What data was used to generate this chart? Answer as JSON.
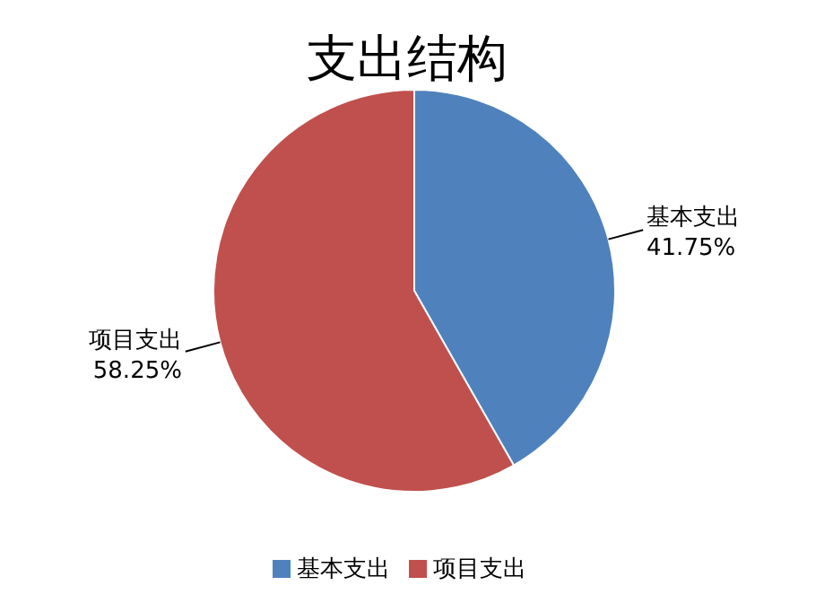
{
  "chart_data": {
    "type": "pie",
    "title": "支出结构",
    "categories": [
      "基本支出",
      "项目支出"
    ],
    "values": [
      41.75,
      58.25
    ],
    "value_labels": [
      "41.75%",
      "58.25%"
    ],
    "colors": [
      "#4f81bd",
      "#c0504d"
    ],
    "legend": "bottom"
  }
}
